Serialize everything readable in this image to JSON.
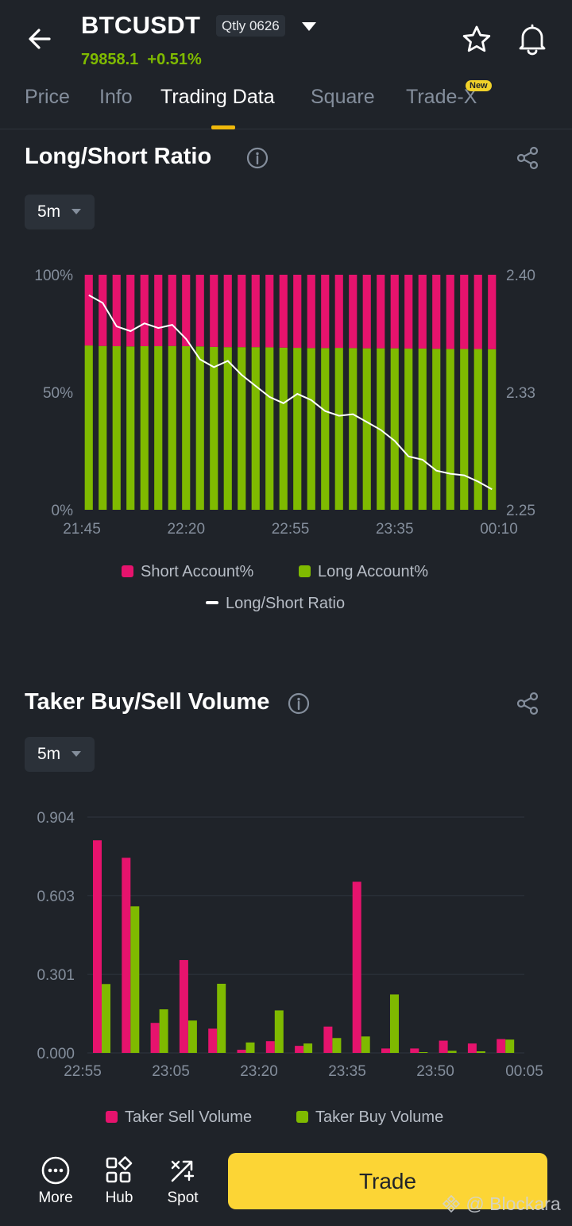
{
  "header": {
    "symbol": "BTCUSDT",
    "contract_badge": "Qtly 0626",
    "last_price": "79858.1",
    "change": "+0.51%"
  },
  "tabs": [
    {
      "label": "Price"
    },
    {
      "label": "Info"
    },
    {
      "label": "Trading Data",
      "active": true
    },
    {
      "label": "Square"
    },
    {
      "label": "Trade-X",
      "badge": "New"
    }
  ],
  "long_short": {
    "title": "Long/Short Ratio",
    "interval": "5m",
    "legend": {
      "short": "Short Account%",
      "long": "Long Account%",
      "ratio": "Long/Short Ratio"
    }
  },
  "taker": {
    "title": "Taker Buy/Sell Volume",
    "interval": "5m",
    "legend": {
      "sell": "Taker Sell Volume",
      "buy": "Taker Buy Volume"
    }
  },
  "bottom_nav": {
    "more": "More",
    "hub": "Hub",
    "spot": "Spot",
    "trade": "Trade"
  },
  "watermark": "@ Blockara",
  "colors": {
    "short": "#e6136d",
    "long": "#7fba00",
    "accent": "#fcd535",
    "up": "#7fba00"
  },
  "chart_data": [
    {
      "type": "bar",
      "stacked": true,
      "title": "Long/Short Ratio",
      "categories": [
        "21:45",
        "21:50",
        "21:55",
        "22:00",
        "22:05",
        "22:10",
        "22:15",
        "22:20",
        "22:25",
        "22:30",
        "22:35",
        "22:40",
        "22:45",
        "22:50",
        "22:55",
        "23:00",
        "23:05",
        "23:10",
        "23:15",
        "23:20",
        "23:25",
        "23:30",
        "23:35",
        "23:40",
        "23:45",
        "23:50",
        "23:55",
        "00:00",
        "00:05",
        "00:10"
      ],
      "x_tick_labels": [
        "21:45",
        "22:20",
        "22:55",
        "23:35",
        "00:10"
      ],
      "y_left_ticks": [
        "100%",
        "50%",
        "0%"
      ],
      "y_right_ticks": [
        "2.40",
        "2.33",
        "2.25"
      ],
      "ylim_left": [
        0,
        100
      ],
      "ylim_right": [
        2.25,
        2.4
      ],
      "series": [
        {
          "name": "Short Account%",
          "axis": "left",
          "values": [
            30.1,
            30.3,
            30.4,
            30.5,
            30.4,
            30.4,
            30.3,
            30.4,
            30.5,
            30.7,
            30.8,
            30.8,
            30.8,
            30.9,
            31.0,
            31.1,
            31.2,
            31.2,
            31.1,
            31.2,
            31.3,
            31.3,
            31.3,
            31.4,
            31.4,
            31.5,
            31.6,
            31.6,
            31.6,
            31.7
          ]
        },
        {
          "name": "Long Account%",
          "axis": "left",
          "values": [
            69.9,
            69.7,
            69.6,
            69.5,
            69.6,
            69.6,
            69.7,
            69.6,
            69.5,
            69.3,
            69.2,
            69.2,
            69.2,
            69.1,
            69.0,
            68.9,
            68.8,
            68.8,
            68.9,
            68.8,
            68.7,
            68.7,
            68.7,
            68.6,
            68.6,
            68.5,
            68.4,
            68.4,
            68.4,
            68.3
          ]
        },
        {
          "name": "Long/Short Ratio",
          "axis": "right",
          "type": "line",
          "values": [
            2.387,
            2.382,
            2.367,
            2.364,
            2.369,
            2.366,
            2.368,
            2.359,
            2.346,
            2.341,
            2.345,
            2.336,
            2.329,
            2.322,
            2.318,
            2.324,
            2.32,
            2.313,
            2.31,
            2.311,
            2.306,
            2.301,
            2.294,
            2.284,
            2.282,
            2.275,
            2.273,
            2.272,
            2.268,
            2.263
          ]
        }
      ]
    },
    {
      "type": "bar",
      "title": "Taker Buy/Sell Volume",
      "categories": [
        "22:55",
        "23:00",
        "23:05",
        "23:10",
        "23:15",
        "23:20",
        "23:25",
        "23:30",
        "23:35",
        "23:40",
        "23:45",
        "23:50",
        "23:55",
        "00:00",
        "00:05"
      ],
      "x_tick_labels": [
        "22:55",
        "23:05",
        "23:20",
        "23:35",
        "23:50",
        "00:05"
      ],
      "y_ticks": [
        "0.904",
        "0.603",
        "0.301",
        "0.000"
      ],
      "ylim": [
        0,
        0.904
      ],
      "series": [
        {
          "name": "Taker Sell Volume",
          "values": [
            0.815,
            0.748,
            0.115,
            0.356,
            0.093,
            0.012,
            0.045,
            0.027,
            0.101,
            0.656,
            0.017,
            0.017,
            0.047,
            0.036,
            0.053
          ]
        },
        {
          "name": "Taker Buy Volume",
          "values": [
            0.264,
            0.562,
            0.167,
            0.124,
            0.265,
            0.04,
            0.163,
            0.036,
            0.057,
            0.063,
            0.224,
            0.003,
            0.008,
            0.006,
            0.051
          ]
        }
      ]
    }
  ]
}
